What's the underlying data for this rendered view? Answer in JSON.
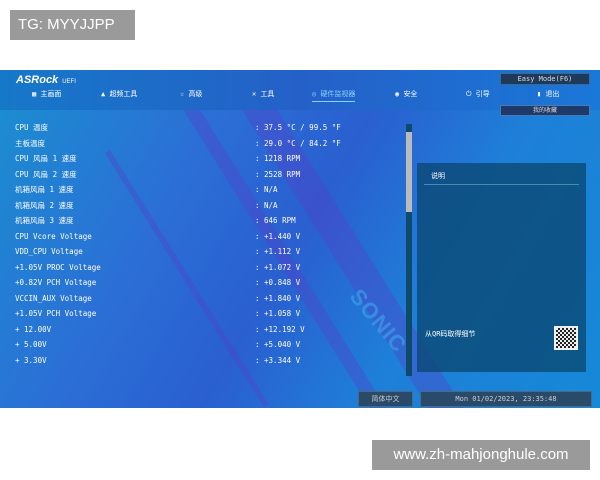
{
  "watermarks": {
    "top": "TG: MYYJJPP",
    "bottom": "www.zh-mahjonghule.com"
  },
  "header": {
    "logo": "ASRock",
    "logo_sub": "UEFI",
    "easy_mode": "Easy Mode(F6)",
    "favorites": "我的收藏",
    "nav": [
      {
        "label": "主画面",
        "icon": "grid-icon"
      },
      {
        "label": "超频工具",
        "icon": "rocket-icon"
      },
      {
        "label": "高级",
        "icon": "star-icon"
      },
      {
        "label": "工具",
        "icon": "tools-icon"
      },
      {
        "label": "硬件监视器",
        "icon": "monitor-icon",
        "active": true
      },
      {
        "label": "安全",
        "icon": "shield-icon"
      },
      {
        "label": "引导",
        "icon": "power-icon"
      },
      {
        "label": "退出",
        "icon": "exit-icon"
      }
    ]
  },
  "rows": [
    {
      "label": "CPU 温度",
      "value": ": 37.5 °C /  99.5 °F"
    },
    {
      "label": "主板温度",
      "value": ": 29.0 °C /  84.2 °F"
    },
    {
      "label": "CPU 风扇 1 速度",
      "value": ": 1218 RPM"
    },
    {
      "label": "CPU 风扇 2 速度",
      "value": ": 2528 RPM"
    },
    {
      "label": "机箱风扇 1 速度",
      "value": ": N/A"
    },
    {
      "label": "机箱风扇 2 速度",
      "value": ": N/A"
    },
    {
      "label": "机箱风扇 3 速度",
      "value": ": 646 RPM"
    },
    {
      "label": "CPU Vcore Voltage",
      "value": ": +1.440 V"
    },
    {
      "label": "VDD_CPU Voltage",
      "value": ": +1.112 V"
    },
    {
      "label": "+1.05V PROC Voltage",
      "value": ": +1.072 V"
    },
    {
      "label": "+0.82V PCH Voltage",
      "value": ": +0.848 V"
    },
    {
      "label": "VCCIN_AUX Voltage",
      "value": ": +1.840 V"
    },
    {
      "label": "+1.05V PCH Voltage",
      "value": ": +1.058 V"
    },
    {
      "label": "+ 12.00V",
      "value": ": +12.192 V"
    },
    {
      "label": "+ 5.00V",
      "value": ": +5.040 V"
    },
    {
      "label": "+ 3.30V",
      "value": ": +3.344 V"
    }
  ],
  "panel": {
    "title": "说明",
    "qr_text": "从QR码取得细节"
  },
  "footer": {
    "language": "简体中文",
    "datetime": "Mon 01/02/2023, 23:35:48"
  },
  "background_text": "SONIC"
}
